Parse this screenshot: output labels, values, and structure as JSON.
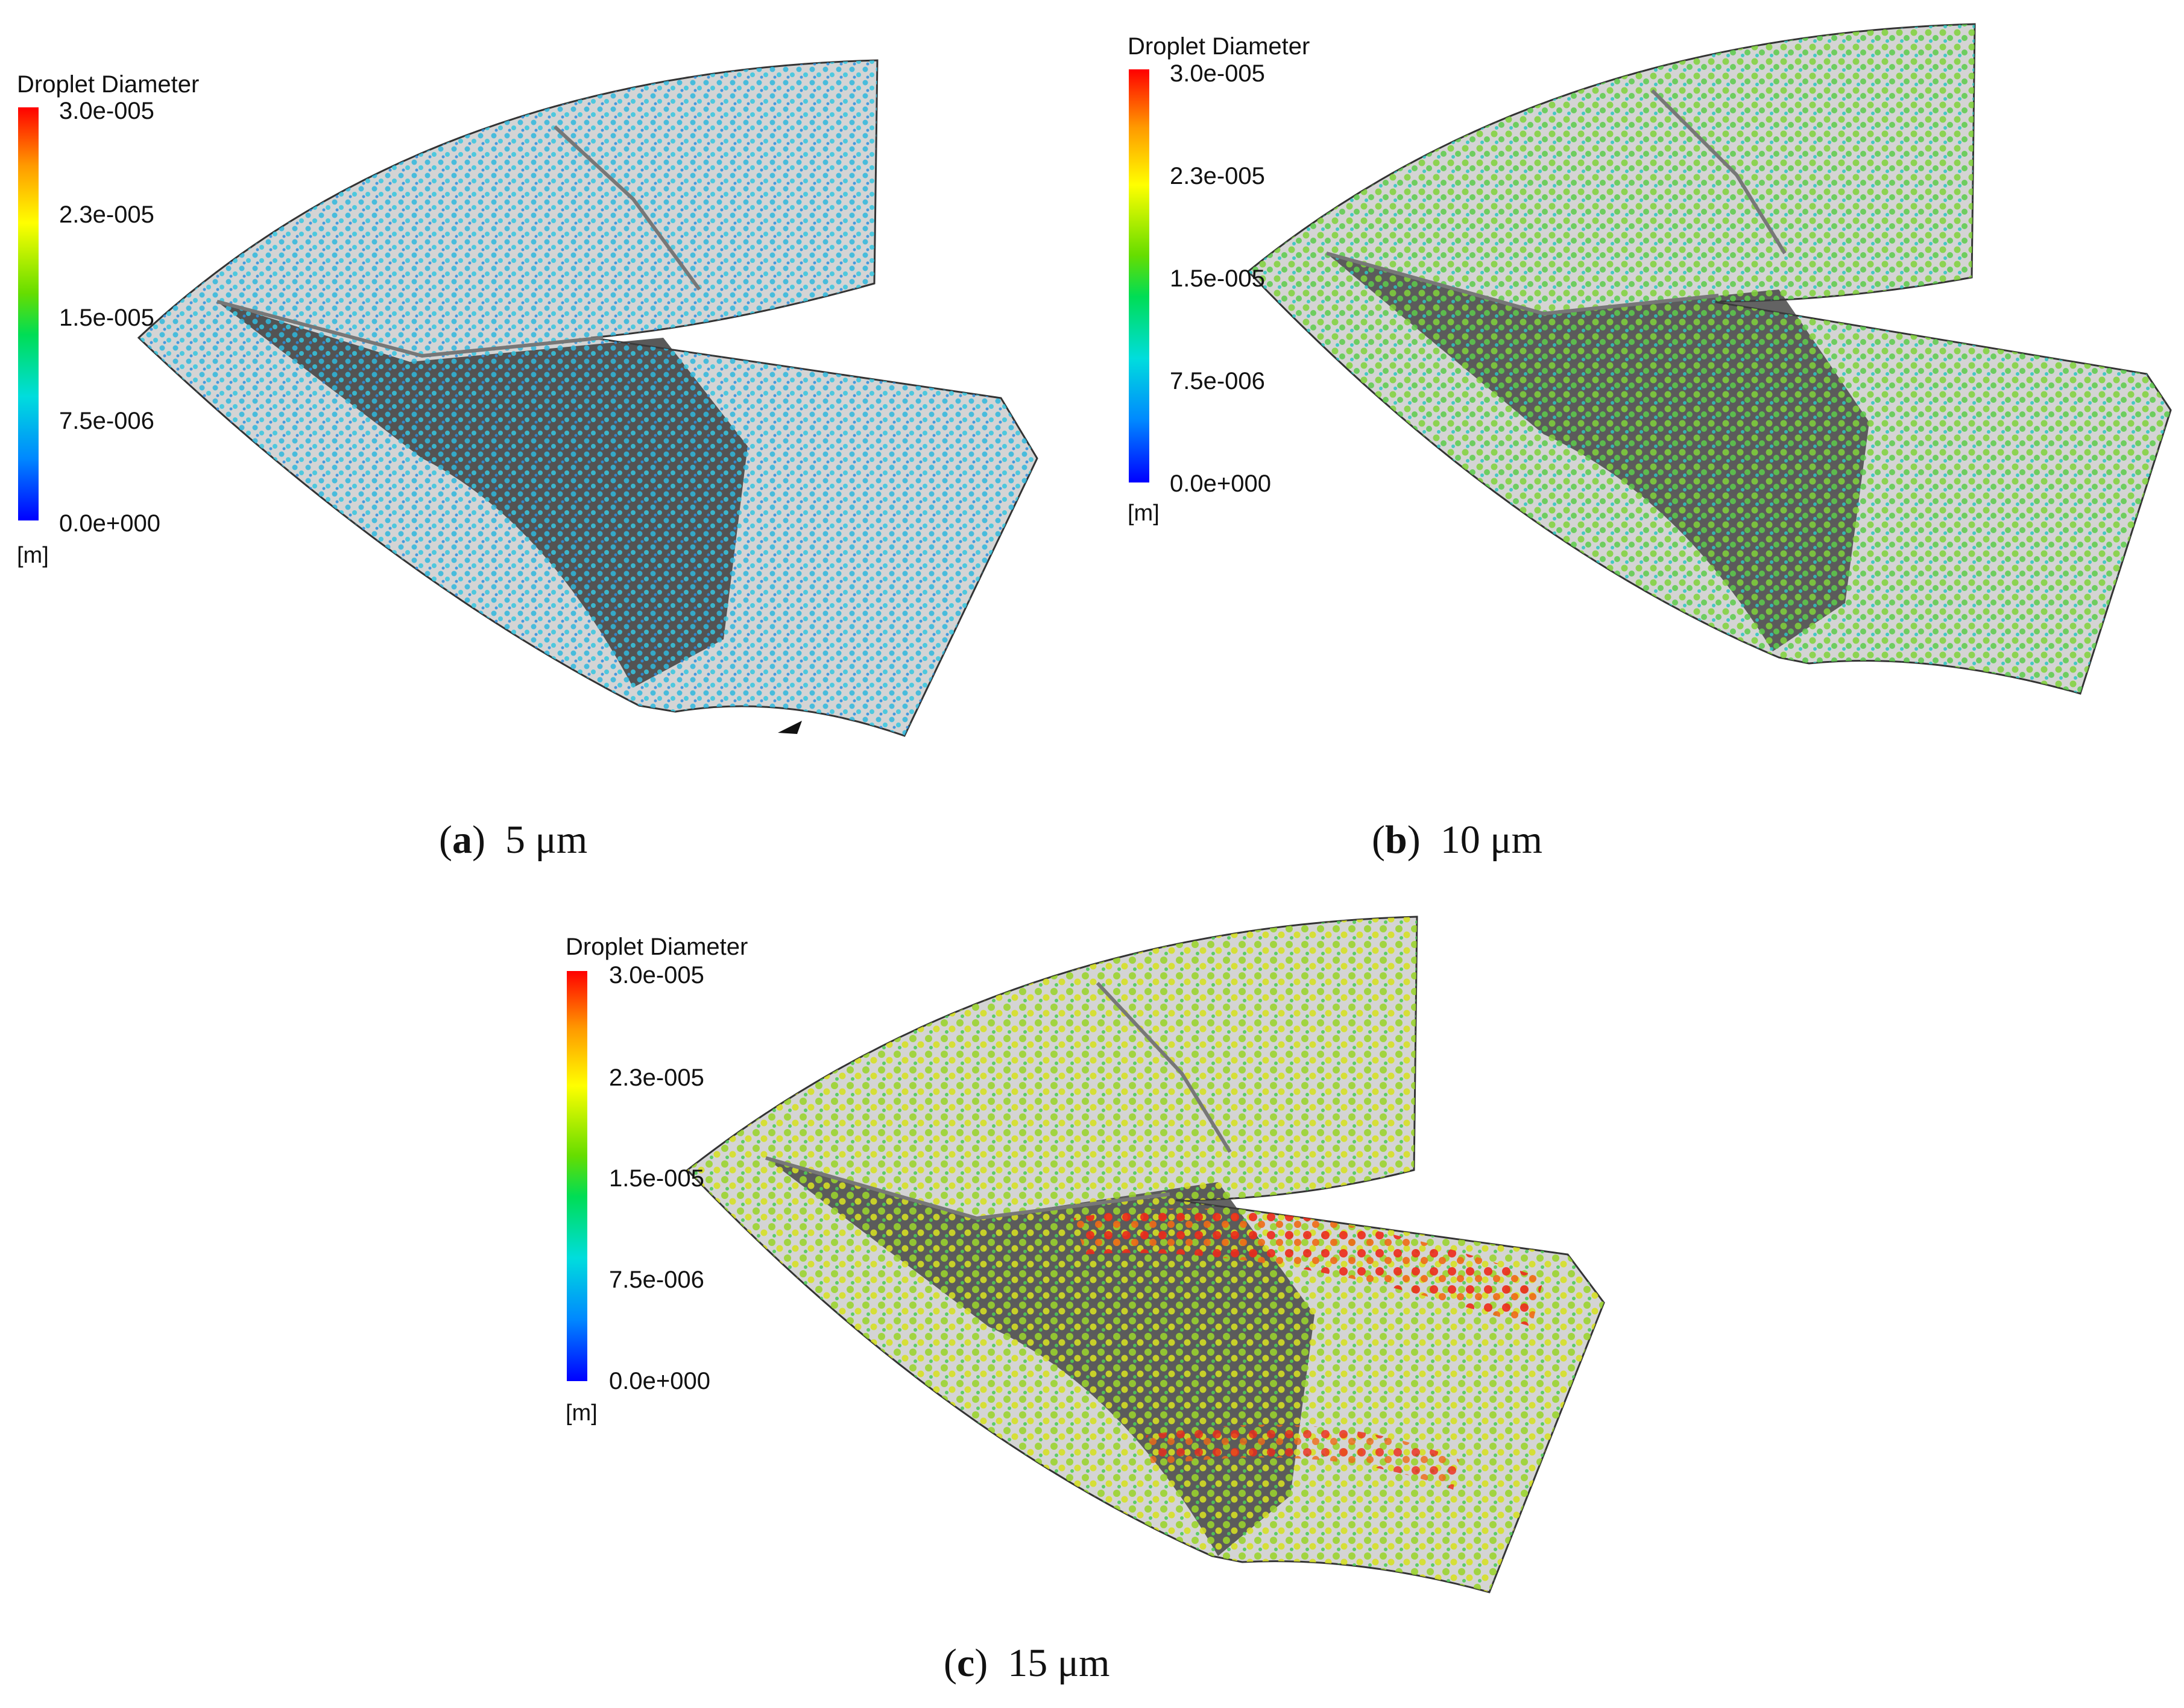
{
  "figure": {
    "panels": [
      {
        "id": "a",
        "legend": {
          "title": "Droplet Diameter",
          "ticks": [
            "3.0e-005",
            "2.3e-005",
            "1.5e-005",
            "7.5e-006",
            "0.0e+000"
          ],
          "unit": "[m]"
        },
        "caption": {
          "letter": "a",
          "text": "5 μm"
        },
        "dominant_color": "#33bbdd"
      },
      {
        "id": "b",
        "legend": {
          "title": "Droplet Diameter",
          "ticks": [
            "3.0e-005",
            "2.3e-005",
            "1.5e-005",
            "7.5e-006",
            "0.0e+000"
          ],
          "unit": "[m]"
        },
        "caption": {
          "letter": "b",
          "text": "10 μm"
        },
        "dominant_color": "#66cc33"
      },
      {
        "id": "c",
        "legend": {
          "title": "Droplet Diameter",
          "ticks": [
            "3.0e-005",
            "2.3e-005",
            "1.5e-005",
            "7.5e-006",
            "0.0e+000"
          ],
          "unit": "[m]"
        },
        "caption": {
          "letter": "c",
          "text": "15 μm"
        },
        "dominant_color": "#99cc22"
      }
    ],
    "colormap": [
      "#0000ff",
      "#0088ff",
      "#00dddd",
      "#00dd55",
      "#66dd00",
      "#ffff00",
      "#ff9900",
      "#ff0000"
    ]
  }
}
